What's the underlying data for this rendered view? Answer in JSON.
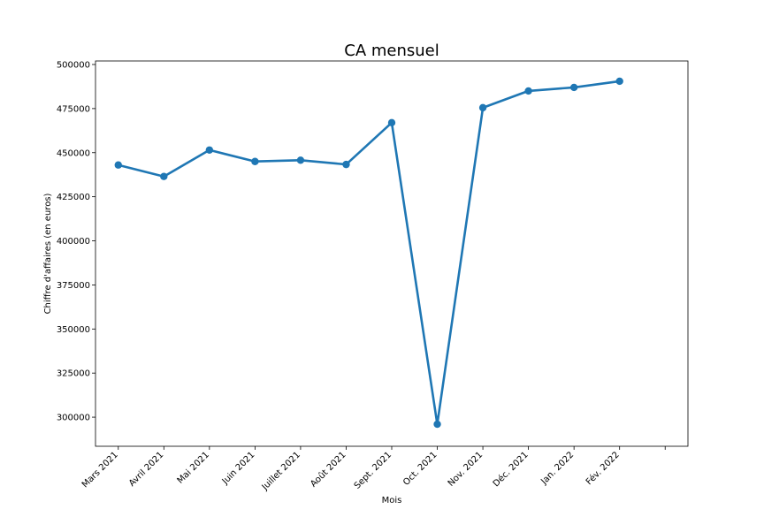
{
  "chart_data": {
    "type": "line",
    "title": "CA mensuel",
    "xlabel": "Mois",
    "ylabel": "Chiffre d'affaires (en euros)",
    "categories": [
      "Mars 2021",
      "Avril 2021",
      "Mai 2021",
      "Juin 2021",
      "Juillet 2021",
      "Août 2021",
      "Sept. 2021",
      "Oct. 2021",
      "Nov. 2021",
      "Déc. 2021",
      "Jan. 2022",
      "Fév. 2022"
    ],
    "values": [
      443000,
      436500,
      451500,
      445000,
      445700,
      443300,
      467000,
      296000,
      475500,
      485000,
      487000,
      490500
    ],
    "yticks": [
      300000,
      325000,
      350000,
      375000,
      400000,
      425000,
      450000,
      475000,
      500000
    ],
    "ylim": [
      283500,
      502000
    ],
    "x_slots": 13,
    "grid": false,
    "line_color": "#1f77b4"
  }
}
